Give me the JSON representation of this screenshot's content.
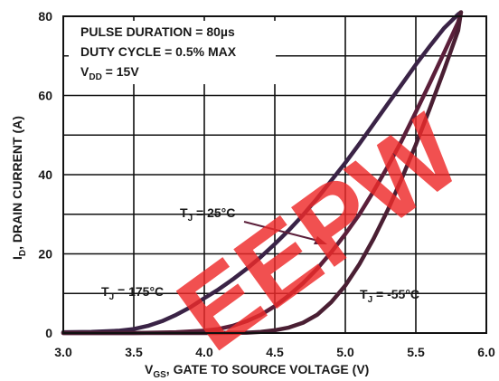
{
  "chart_data": {
    "type": "line",
    "xlabel": "V",
    "xlabel_sub": "GS",
    "xlabel_rest": ", GATE TO SOURCE VOLTAGE (V)",
    "ylabel": "I",
    "ylabel_sub": "D",
    "ylabel_rest": ", DRAIN CURRENT (A)",
    "xlim": [
      3.0,
      6.0
    ],
    "ylim": [
      0,
      80
    ],
    "xticks": [
      "3.0",
      "3.5",
      "4.0",
      "4.5",
      "5.0",
      "5.5",
      "6.0"
    ],
    "yticks": [
      "0",
      "20",
      "40",
      "60",
      "80"
    ],
    "grid": true,
    "conditions": [
      {
        "text": "PULSE DURATION = 80µs"
      },
      {
        "text": "DUTY CYCLE = 0.5% MAX"
      },
      {
        "prefix": "V",
        "sub": "DD",
        "suffix": " = 15V"
      }
    ],
    "series": [
      {
        "name_prefix": "T",
        "name_sub": "J",
        "name_suffix": " = 175°C",
        "color": "#3a2346",
        "x": [
          3.0,
          3.2,
          3.4,
          3.5,
          3.6,
          3.7,
          3.8,
          3.9,
          4.0,
          4.1,
          4.2,
          4.3,
          4.4,
          4.5,
          4.6,
          4.7,
          4.8,
          4.9,
          5.0,
          5.1,
          5.2,
          5.3,
          5.4,
          5.5,
          5.6,
          5.7,
          5.8,
          5.82
        ],
        "y": [
          0.2,
          0.3,
          0.6,
          1.0,
          1.8,
          3.0,
          4.6,
          6.5,
          8.8,
          11.0,
          13.5,
          16.2,
          19.2,
          22.5,
          26.0,
          29.8,
          34.0,
          38.5,
          43.0,
          47.8,
          52.8,
          57.8,
          62.8,
          67.8,
          72.5,
          77.0,
          80.5,
          81.0
        ]
      },
      {
        "name_prefix": "T",
        "name_sub": "J",
        "name_suffix": " = 25°C",
        "color": "#5b1f3a",
        "x": [
          3.0,
          3.5,
          3.8,
          4.0,
          4.1,
          4.2,
          4.3,
          4.4,
          4.5,
          4.6,
          4.7,
          4.8,
          4.9,
          5.0,
          5.1,
          5.2,
          5.3,
          5.4,
          5.5,
          5.6,
          5.7,
          5.8,
          5.82
        ],
        "y": [
          0,
          0,
          0.2,
          0.6,
          1.0,
          1.8,
          3.0,
          4.6,
          6.8,
          9.5,
          12.6,
          16.2,
          20.4,
          25.0,
          30.0,
          35.8,
          42.0,
          48.6,
          55.8,
          63.2,
          70.8,
          78.5,
          81.0
        ]
      },
      {
        "name_prefix": "T",
        "name_sub": "J",
        "name_suffix": " = -55°C",
        "color": "#4a1f33",
        "x": [
          3.0,
          4.0,
          4.3,
          4.4,
          4.5,
          4.6,
          4.7,
          4.8,
          4.9,
          5.0,
          5.1,
          5.2,
          5.3,
          5.4,
          5.5,
          5.6,
          5.7,
          5.8,
          5.82
        ],
        "y": [
          0,
          0,
          0.1,
          0.3,
          0.7,
          1.4,
          2.6,
          4.6,
          7.8,
          12.0,
          17.4,
          23.8,
          31.0,
          39.0,
          47.6,
          56.8,
          66.4,
          76.4,
          81.0
        ]
      }
    ],
    "watermark": "EEPW"
  }
}
